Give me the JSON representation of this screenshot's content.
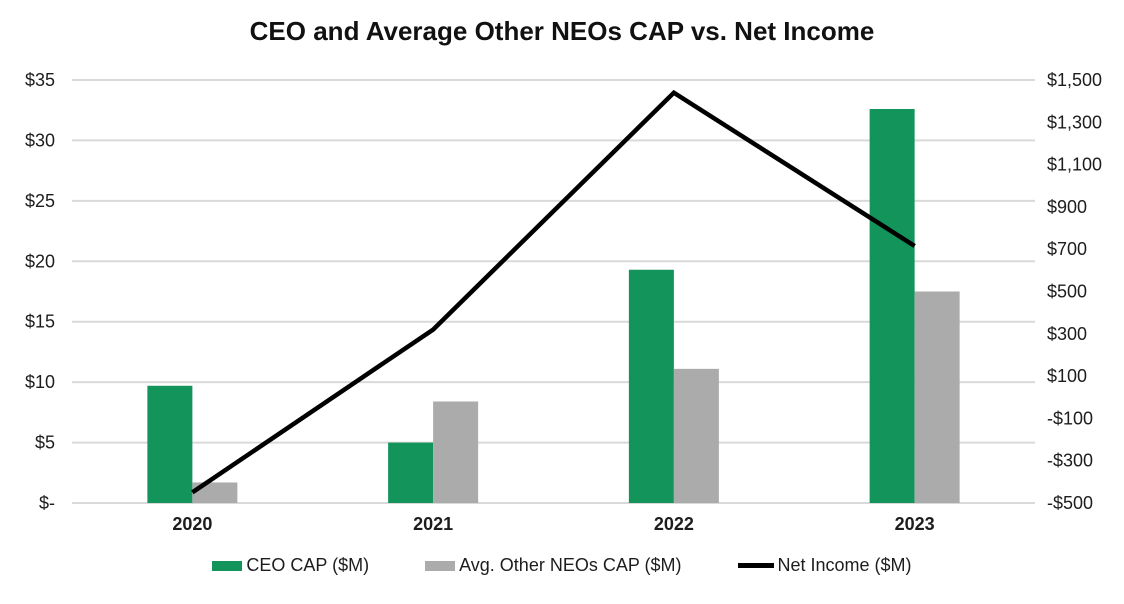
{
  "chart_data": {
    "type": "combo",
    "title": "CEO and Average Other NEOs CAP vs. Net Income",
    "categories": [
      "2020",
      "2021",
      "2022",
      "2023"
    ],
    "series": [
      {
        "name": "CEO CAP ($M)",
        "type": "bar",
        "axis": "left",
        "color": "#12945B",
        "values": [
          9.7,
          5.0,
          19.3,
          32.6
        ]
      },
      {
        "name": "Avg. Other NEOs CAP ($M)",
        "type": "bar",
        "axis": "left",
        "color": "#ABABAB",
        "values": [
          1.7,
          8.4,
          11.1,
          17.5
        ]
      },
      {
        "name": "Net Income ($M)",
        "type": "line",
        "axis": "right",
        "color": "#000000",
        "values": [
          -450,
          320,
          1440,
          715
        ]
      }
    ],
    "left_axis": {
      "min": 0,
      "max": 35,
      "step": 5,
      "tick_labels": [
        "$35",
        "$30",
        "$25",
        "$20",
        "$15",
        "$10",
        "$5",
        "$-"
      ]
    },
    "right_axis": {
      "min": -500,
      "max": 1500,
      "step": 200,
      "tick_labels": [
        "$1,500",
        "$1,300",
        "$1,100",
        "$900",
        "$700",
        "$500",
        "$300",
        "$100",
        "-$100",
        "-$300",
        "-$500"
      ]
    },
    "gridlines": true,
    "gridline_color": "#D9D9D9",
    "legend_position": "bottom",
    "background_color": "#FFFFFF",
    "text_color": "#1D1D1D"
  }
}
